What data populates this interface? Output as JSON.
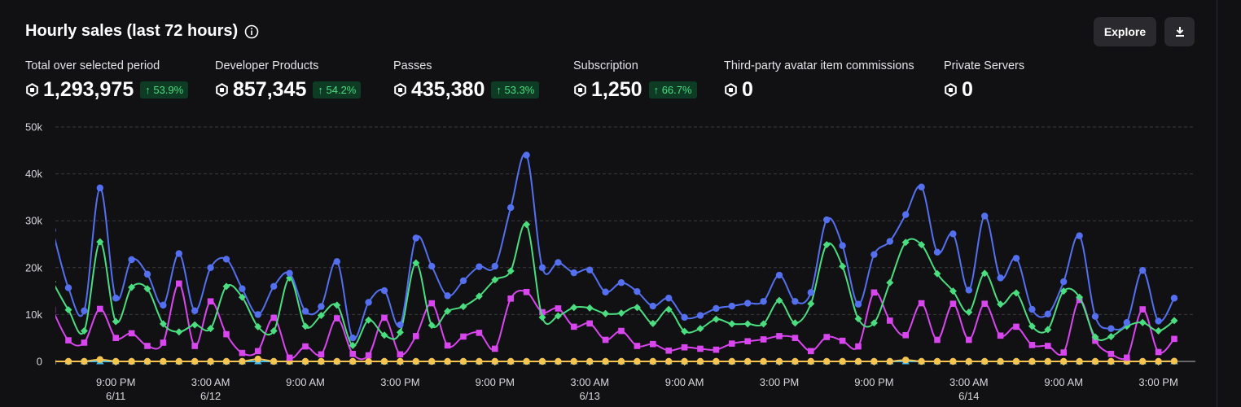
{
  "header": {
    "title": "Hourly sales (last 72 hours)",
    "explore": "Explore"
  },
  "stats": [
    {
      "label": "Total over selected period",
      "value": "1,293,975",
      "change": "53.9%"
    },
    {
      "label": "Developer Products",
      "value": "857,345",
      "change": "54.2%"
    },
    {
      "label": "Passes",
      "value": "435,380",
      "change": "53.3%"
    },
    {
      "label": "Subscription",
      "value": "1,250",
      "change": "66.7%"
    },
    {
      "label": "Third-party avatar item commissions",
      "value": "0"
    },
    {
      "label": "Private Servers",
      "value": "0"
    }
  ],
  "chart_data": {
    "type": "line",
    "smooth": true,
    "grid": true,
    "x": [
      0,
      1,
      2,
      3,
      4,
      5,
      6,
      7,
      8,
      9,
      10,
      11,
      12,
      13,
      14,
      15,
      16,
      17,
      18,
      19,
      20,
      21,
      22,
      23,
      24,
      25,
      26,
      27,
      28,
      29,
      30,
      31,
      32,
      33,
      34,
      35,
      36,
      37,
      38,
      39,
      40,
      41,
      42,
      43,
      44,
      45,
      46,
      47,
      48,
      49,
      50,
      51,
      52,
      53,
      54,
      55,
      56,
      57,
      58,
      59,
      60,
      61,
      62,
      63,
      64,
      65,
      66,
      67,
      68,
      69,
      70,
      71
    ],
    "xlim": [
      0,
      72
    ],
    "xticks": [
      {
        "value": 4,
        "label": "9:00 PM",
        "date": "6/11"
      },
      {
        "value": 10,
        "label": "3:00 AM",
        "date": "6/12"
      },
      {
        "value": 16,
        "label": "9:00 AM"
      },
      {
        "value": 22,
        "label": "3:00 PM"
      },
      {
        "value": 28,
        "label": "9:00 PM"
      },
      {
        "value": 34,
        "label": "3:00 AM",
        "date": "6/13"
      },
      {
        "value": 40,
        "label": "9:00 AM"
      },
      {
        "value": 46,
        "label": "3:00 PM"
      },
      {
        "value": 52,
        "label": "9:00 PM"
      },
      {
        "value": 58,
        "label": "3:00 AM",
        "date": "6/14"
      },
      {
        "value": 64,
        "label": "9:00 AM"
      },
      {
        "value": 70,
        "label": "3:00 PM"
      }
    ],
    "ylim": [
      0,
      50000
    ],
    "yticks": [
      0,
      {
        "value": 10000,
        "label": "10k"
      },
      {
        "value": 20000,
        "label": "20k"
      },
      {
        "value": 30000,
        "label": "30k"
      },
      {
        "value": 40000,
        "label": "40k"
      },
      {
        "value": 50000,
        "label": "50k"
      }
    ],
    "series": [
      {
        "color": "#5470f0",
        "marker": "circle",
        "values": [
          28000,
          15700,
          10800,
          37000,
          13500,
          21700,
          18600,
          12000,
          23000,
          10800,
          20000,
          21800,
          15500,
          10000,
          16000,
          18800,
          10700,
          11700,
          21300,
          5000,
          12600,
          15100,
          7800,
          26300,
          20300,
          14000,
          17200,
          20200,
          20300,
          32800,
          44000,
          20000,
          21100,
          18900,
          19500,
          14800,
          16800,
          14900,
          11800,
          13500,
          9400,
          9800,
          11300,
          11800,
          12400,
          12800,
          18400,
          12800,
          14700,
          30200,
          24700,
          12200,
          22800,
          25600,
          31300,
          37200,
          23300,
          27200,
          15200,
          31000,
          17800,
          22000,
          11100,
          10100,
          17000,
          26800,
          9600,
          7000,
          8300,
          19400,
          8600,
          13500
        ]
      },
      {
        "color": "#4ade80",
        "marker": "diamond",
        "values": [
          17000,
          11000,
          6500,
          25500,
          8500,
          15800,
          15500,
          8000,
          6300,
          7800,
          7000,
          16000,
          13700,
          7400,
          6500,
          17800,
          7500,
          9800,
          12000,
          3400,
          8800,
          5600,
          6200,
          21000,
          7700,
          10700,
          11700,
          13900,
          17400,
          19300,
          29200,
          9400,
          9700,
          11500,
          11400,
          10200,
          10300,
          11500,
          8100,
          11100,
          6400,
          7000,
          9000,
          8000,
          8000,
          8000,
          13000,
          8200,
          12300,
          24900,
          20300,
          9100,
          8200,
          16800,
          25400,
          24900,
          18700,
          15000,
          10500,
          18800,
          12200,
          14600,
          7500,
          6800,
          15000,
          13700,
          5200,
          5300,
          7500,
          8300,
          6500,
          8700
        ]
      },
      {
        "color": "#d946ef",
        "marker": "square",
        "values": [
          11000,
          4500,
          4000,
          11200,
          5000,
          6000,
          3300,
          4000,
          16600,
          3300,
          12800,
          5800,
          1800,
          2200,
          9300,
          800,
          3200,
          1500,
          9200,
          1600,
          1300,
          9300,
          1500,
          5400,
          12400,
          3400,
          5300,
          6100,
          2700,
          13400,
          14800,
          10500,
          11300,
          7400,
          8100,
          4600,
          6500,
          3300,
          3700,
          2300,
          3000,
          2700,
          2500,
          3800,
          4300,
          4700,
          5400,
          5000,
          2200,
          5200,
          4400,
          3200,
          14700,
          8700,
          5600,
          12400,
          4600,
          12300,
          4600,
          12300,
          5500,
          7400,
          3500,
          3300,
          1900,
          13100,
          4400,
          1600,
          800,
          11100,
          2000,
          4800
        ]
      },
      {
        "color": "#f5c451",
        "marker": "circle",
        "values": [
          0,
          0,
          0,
          400,
          0,
          0,
          0,
          0,
          0,
          0,
          0,
          0,
          0,
          500,
          0,
          0,
          0,
          0,
          0,
          0,
          0,
          0,
          0,
          0,
          0,
          0,
          0,
          0,
          0,
          0,
          0,
          0,
          0,
          0,
          0,
          0,
          0,
          0,
          0,
          0,
          0,
          0,
          0,
          0,
          0,
          0,
          0,
          0,
          0,
          0,
          0,
          0,
          0,
          0,
          300,
          0,
          0,
          0,
          0,
          0,
          0,
          0,
          0,
          0,
          0,
          0,
          0,
          0,
          0,
          0,
          0,
          50
        ]
      },
      {
        "color": "#38bdf8",
        "marker": "triangle",
        "values": [
          0,
          0,
          0,
          0,
          0,
          0,
          0,
          0,
          0,
          0,
          0,
          0,
          0,
          0,
          0,
          0,
          0,
          0,
          0,
          0,
          0,
          0,
          0,
          0,
          0,
          0,
          0,
          0,
          0,
          0,
          0,
          0,
          0,
          0,
          0,
          0,
          0,
          0,
          0,
          0,
          0,
          0,
          0,
          0,
          0,
          0,
          0,
          0,
          0,
          0,
          0,
          0,
          0,
          0,
          0,
          0,
          0,
          0,
          0,
          0,
          0,
          0,
          0,
          0,
          0,
          0,
          0,
          0,
          0,
          0,
          0,
          0
        ]
      },
      {
        "color": "#f2c46d",
        "marker": "triangle",
        "values": [
          0,
          0,
          0,
          0,
          0,
          0,
          0,
          0,
          0,
          0,
          0,
          0,
          0,
          0,
          0,
          0,
          0,
          0,
          0,
          0,
          0,
          0,
          0,
          0,
          0,
          0,
          0,
          0,
          0,
          0,
          0,
          0,
          0,
          0,
          0,
          0,
          0,
          0,
          0,
          0,
          0,
          0,
          0,
          0,
          0,
          0,
          0,
          0,
          0,
          0,
          0,
          0,
          0,
          0,
          0,
          0,
          0,
          0,
          0,
          0,
          0,
          0,
          0,
          0,
          0,
          0,
          0,
          0,
          0,
          0,
          0,
          0
        ]
      }
    ]
  }
}
